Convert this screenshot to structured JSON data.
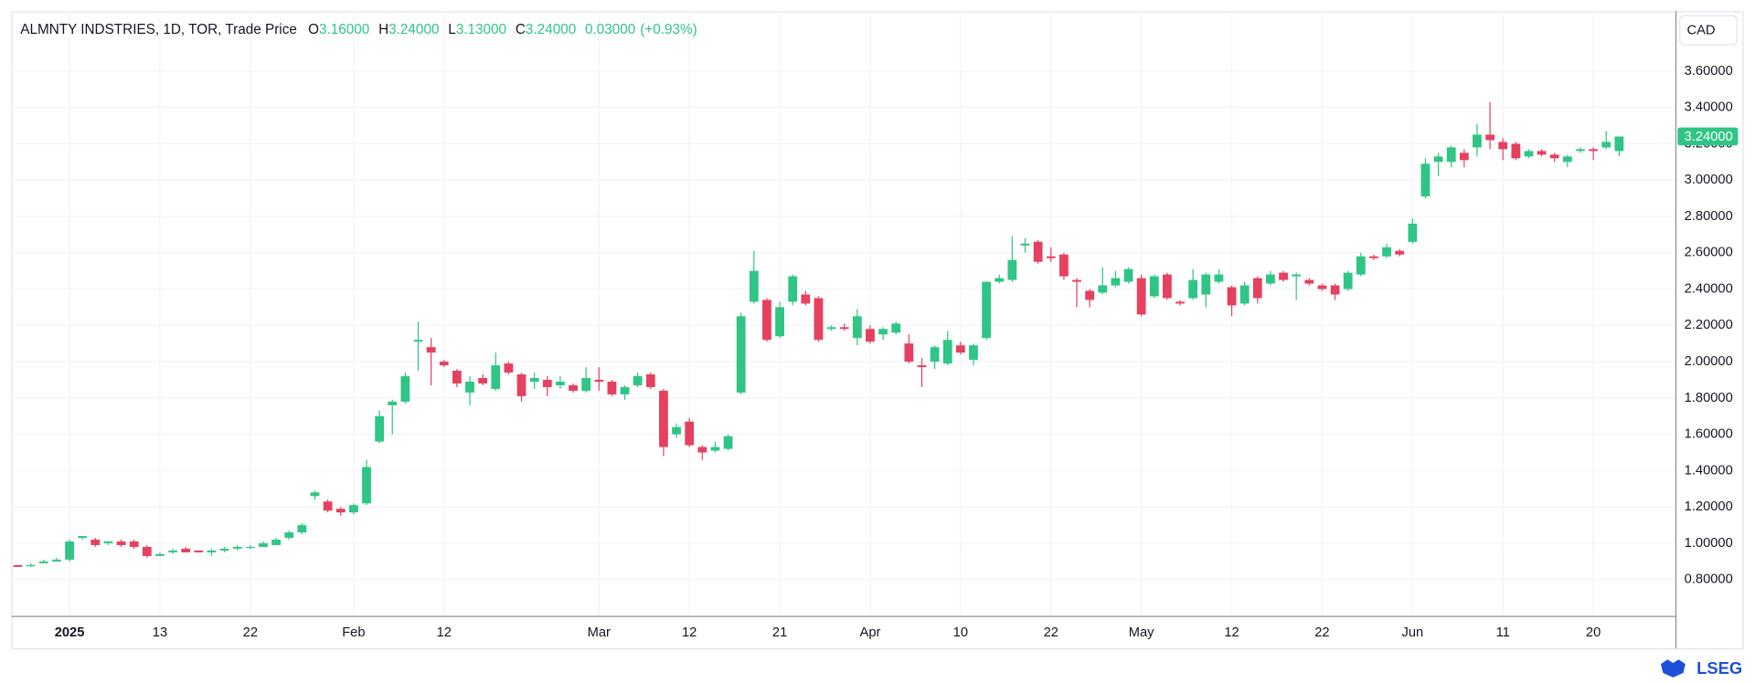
{
  "chart_data": {
    "type": "candlestick",
    "title": "ALMNTY INDSTRIES, 1D, TOR, Trade Price",
    "ohlc_header": {
      "open_label": "O",
      "open": "3.16000",
      "high_label": "H",
      "high": "3.24000",
      "low_label": "L",
      "low": "3.13000",
      "close_label": "C",
      "close": "3.24000",
      "change": "0.03000",
      "change_pct": "(+0.93%)"
    },
    "currency": "CAD",
    "logo": "LSEG",
    "up_color": "#2fc585",
    "down_color": "#e5415f",
    "grid": true,
    "categories": [
      null,
      null,
      null,
      null,
      "2025",
      null,
      null,
      null,
      null,
      null,
      null,
      "13",
      null,
      null,
      null,
      null,
      null,
      null,
      "22",
      null,
      null,
      null,
      null,
      null,
      null,
      null,
      "Feb",
      null,
      null,
      null,
      null,
      null,
      null,
      "12",
      null,
      null,
      null,
      null,
      null,
      null,
      null,
      null,
      null,
      null,
      null,
      "Mar",
      null,
      null,
      null,
      null,
      null,
      null,
      "12",
      null,
      null,
      null,
      null,
      null,
      null,
      "21",
      null,
      null,
      null,
      null,
      null,
      null,
      "Apr",
      null,
      null,
      null,
      null,
      null,
      null,
      "10",
      null,
      null,
      null,
      null,
      null,
      null,
      "22",
      null,
      null,
      null,
      null,
      null,
      null,
      "May",
      null,
      null,
      null,
      null,
      null,
      null,
      "12",
      null,
      null,
      null,
      null,
      null,
      null,
      "22",
      null,
      null,
      null,
      null,
      null,
      null,
      "Jun",
      null,
      null,
      null,
      null,
      null,
      null,
      "11",
      null,
      null,
      null,
      null,
      null,
      null,
      "20",
      null,
      null
    ],
    "open": [
      0.88,
      0.88,
      0.89,
      0.9,
      0.91,
      1.03,
      1.02,
      1.0,
      1.01,
      1.01,
      0.98,
      0.93,
      0.95,
      0.97,
      0.96,
      0.95,
      0.96,
      0.97,
      0.98,
      0.98,
      0.99,
      1.03,
      1.06,
      1.26,
      1.23,
      1.19,
      1.17,
      1.22,
      1.56,
      1.76,
      1.78,
      2.11,
      2.08,
      2.0,
      1.95,
      1.83,
      1.91,
      1.85,
      1.99,
      1.93,
      1.89,
      1.9,
      1.87,
      1.87,
      1.84,
      1.9,
      1.89,
      1.82,
      1.87,
      1.93,
      1.84,
      1.6,
      1.67,
      1.53,
      1.51,
      1.52,
      1.83,
      2.33,
      2.34,
      2.14,
      2.33,
      2.37,
      2.35,
      2.18,
      2.19,
      2.13,
      2.18,
      2.15,
      2.16,
      2.1,
      1.98,
      2.0,
      1.99,
      2.09,
      2.01,
      2.13,
      2.44,
      2.45,
      2.64,
      2.66,
      2.58,
      2.59,
      2.45,
      2.39,
      2.38,
      2.42,
      2.44,
      2.46,
      2.36,
      2.48,
      2.33,
      2.35,
      2.37,
      2.44,
      2.41,
      2.32,
      2.46,
      2.43,
      2.49,
      2.47,
      2.45,
      2.42,
      2.42,
      2.4,
      2.48,
      2.58,
      2.58,
      2.61,
      2.66,
      2.91,
      3.1,
      3.1,
      3.15,
      3.18,
      3.25,
      3.21,
      3.2,
      3.13,
      3.16,
      3.14,
      3.1,
      3.16,
      3.17,
      3.18,
      3.16
    ],
    "high": [
      0.88,
      0.89,
      0.91,
      0.92,
      1.02,
      1.04,
      1.03,
      1.01,
      1.02,
      1.02,
      0.99,
      0.95,
      0.97,
      0.98,
      0.96,
      0.97,
      0.98,
      0.99,
      0.99,
      1.01,
      1.03,
      1.07,
      1.11,
      1.29,
      1.24,
      1.2,
      1.22,
      1.46,
      1.73,
      1.79,
      1.94,
      2.22,
      2.13,
      2.01,
      1.96,
      1.92,
      1.93,
      2.05,
      2.0,
      1.94,
      1.94,
      1.92,
      1.92,
      1.88,
      1.97,
      1.97,
      1.9,
      1.87,
      1.94,
      1.94,
      1.85,
      1.66,
      1.69,
      1.54,
      1.56,
      1.6,
      2.27,
      2.61,
      2.35,
      2.33,
      2.48,
      2.39,
      2.36,
      2.2,
      2.21,
      2.29,
      2.2,
      2.19,
      2.22,
      2.15,
      2.02,
      2.09,
      2.17,
      2.11,
      2.1,
      2.44,
      2.48,
      2.69,
      2.68,
      2.67,
      2.63,
      2.6,
      2.46,
      2.4,
      2.52,
      2.5,
      2.52,
      2.48,
      2.48,
      2.49,
      2.34,
      2.51,
      2.49,
      2.51,
      2.42,
      2.44,
      2.47,
      2.5,
      2.5,
      2.49,
      2.46,
      2.43,
      2.43,
      2.5,
      2.6,
      2.59,
      2.65,
      2.62,
      2.79,
      3.12,
      3.15,
      3.19,
      3.17,
      3.31,
      3.43,
      3.23,
      3.21,
      3.17,
      3.17,
      3.15,
      3.14,
      3.18,
      3.18,
      3.27,
      3.24
    ],
    "low": [
      0.87,
      0.87,
      0.89,
      0.9,
      0.9,
      1.02,
      0.98,
      0.99,
      0.98,
      0.97,
      0.92,
      0.93,
      0.94,
      0.95,
      0.95,
      0.93,
      0.95,
      0.96,
      0.97,
      0.98,
      0.99,
      1.02,
      1.05,
      1.24,
      1.17,
      1.15,
      1.16,
      1.21,
      1.55,
      1.6,
      1.77,
      1.95,
      1.87,
      1.97,
      1.86,
      1.76,
      1.87,
      1.84,
      1.93,
      1.78,
      1.85,
      1.81,
      1.85,
      1.83,
      1.83,
      1.84,
      1.81,
      1.79,
      1.86,
      1.85,
      1.48,
      1.58,
      1.53,
      1.46,
      1.5,
      1.51,
      1.82,
      2.32,
      2.11,
      2.13,
      2.31,
      2.31,
      2.11,
      2.17,
      2.17,
      2.09,
      2.1,
      2.12,
      2.15,
      1.99,
      1.86,
      1.96,
      1.98,
      2.04,
      1.98,
      2.12,
      2.43,
      2.44,
      2.6,
      2.54,
      2.55,
      2.45,
      2.3,
      2.3,
      2.37,
      2.41,
      2.43,
      2.25,
      2.35,
      2.34,
      2.31,
      2.34,
      2.3,
      2.43,
      2.25,
      2.31,
      2.32,
      2.42,
      2.44,
      2.34,
      2.42,
      2.39,
      2.34,
      2.39,
      2.47,
      2.56,
      2.57,
      2.58,
      2.65,
      2.9,
      3.02,
      3.07,
      3.07,
      3.13,
      3.17,
      3.11,
      3.11,
      3.12,
      3.13,
      3.1,
      3.07,
      3.15,
      3.11,
      3.17,
      3.13
    ],
    "close": [
      0.87,
      0.88,
      0.9,
      0.91,
      1.01,
      1.04,
      0.99,
      1.01,
      0.99,
      0.98,
      0.93,
      0.94,
      0.96,
      0.95,
      0.95,
      0.96,
      0.97,
      0.98,
      0.98,
      1.0,
      1.02,
      1.06,
      1.1,
      1.28,
      1.18,
      1.17,
      1.21,
      1.42,
      1.7,
      1.78,
      1.92,
      2.12,
      2.05,
      1.98,
      1.88,
      1.89,
      1.88,
      1.98,
      1.94,
      1.81,
      1.91,
      1.86,
      1.89,
      1.84,
      1.91,
      1.89,
      1.82,
      1.86,
      1.92,
      1.86,
      1.53,
      1.64,
      1.54,
      1.5,
      1.53,
      1.59,
      2.25,
      2.5,
      2.12,
      2.3,
      2.47,
      2.32,
      2.12,
      2.19,
      2.18,
      2.25,
      2.11,
      2.18,
      2.21,
      2.0,
      1.97,
      2.08,
      2.12,
      2.05,
      2.09,
      2.44,
      2.46,
      2.56,
      2.65,
      2.55,
      2.57,
      2.47,
      2.44,
      2.34,
      2.42,
      2.46,
      2.51,
      2.26,
      2.47,
      2.35,
      2.32,
      2.45,
      2.48,
      2.48,
      2.31,
      2.42,
      2.35,
      2.48,
      2.45,
      2.48,
      2.43,
      2.4,
      2.37,
      2.49,
      2.58,
      2.57,
      2.63,
      2.59,
      2.76,
      3.09,
      3.13,
      3.18,
      3.11,
      3.25,
      3.22,
      3.17,
      3.12,
      3.16,
      3.14,
      3.12,
      3.13,
      3.17,
      3.16,
      3.21,
      3.24
    ],
    "ylim": [
      0.6,
      3.93
    ],
    "yticks": [
      {
        "value": 0.8,
        "label": "0.80000"
      },
      {
        "value": 1.0,
        "label": "1.00000"
      },
      {
        "value": 1.2,
        "label": "1.20000"
      },
      {
        "value": 1.4,
        "label": "1.40000"
      },
      {
        "value": 1.6,
        "label": "1.60000"
      },
      {
        "value": 1.8,
        "label": "1.80000"
      },
      {
        "value": 2.0,
        "label": "2.00000"
      },
      {
        "value": 2.2,
        "label": "2.20000"
      },
      {
        "value": 2.4,
        "label": "2.40000"
      },
      {
        "value": 2.6,
        "label": "2.60000"
      },
      {
        "value": 2.8,
        "label": "2.80000"
      },
      {
        "value": 3.0,
        "label": "3.00000"
      },
      {
        "value": 3.2,
        "label": "3.20000"
      },
      {
        "value": 3.4,
        "label": "3.40000"
      },
      {
        "value": 3.6,
        "label": "3.60000"
      }
    ],
    "last_price": {
      "value": 3.24,
      "label": "3.24000"
    }
  }
}
